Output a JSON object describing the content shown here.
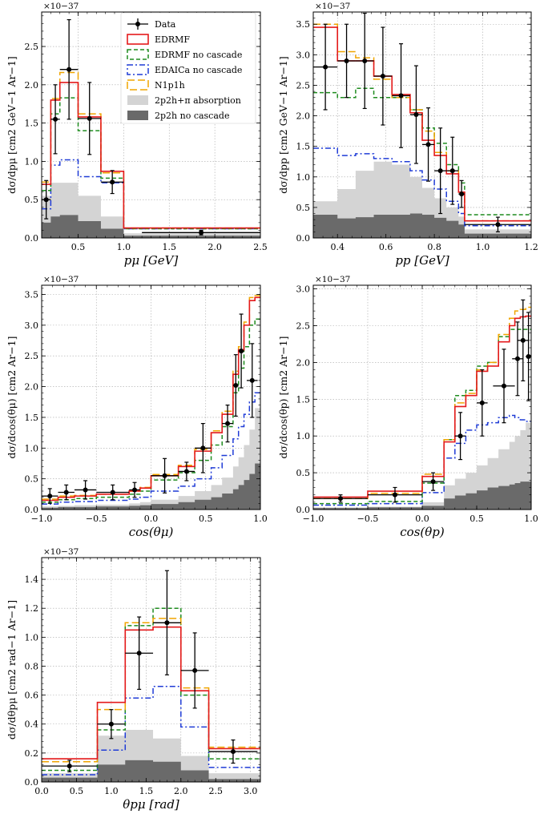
{
  "legend": {
    "title_hidden": "",
    "entries": [
      {
        "key": "data",
        "label": "Data"
      },
      {
        "key": "edrmf",
        "label": "EDRMF"
      },
      {
        "key": "edrmf_nc",
        "label": "EDRMF no cascade"
      },
      {
        "key": "edaica_nc",
        "label": "EDAICa no cascade"
      },
      {
        "key": "n1p1h",
        "label": "N1p1h"
      },
      {
        "key": "abs",
        "label": "2p2h+π absorption"
      },
      {
        "key": "nocasc",
        "label": "2p2h no cascade"
      }
    ]
  },
  "colors": {
    "edrmf": "#e41a1c",
    "edrmf_nc": "#1f8c1f",
    "edaica_nc": "#1f3bd6",
    "n1p1h": "#f0a500",
    "abs": "#d4d4d4",
    "nocasc": "#6a6a6a",
    "data": "#000000"
  },
  "chart_data": [
    {
      "id": "pmu",
      "type": "histogram",
      "scale_label": "×10−37",
      "xlabel": "pμ [GeV]",
      "ylabel": "dσ/dpμ [cm2 GeV−1 Ar−1]",
      "xlim": [
        0.1,
        2.5
      ],
      "ylim": [
        0,
        2.95
      ],
      "xticks": [
        0.5,
        1.0,
        1.5,
        2.0,
        2.5
      ],
      "xtick_labels": [
        "0.5",
        "1.0",
        "1.5",
        "2.0",
        "2.5"
      ],
      "yticks": [
        0.0,
        0.5,
        1.0,
        1.5,
        2.0,
        2.5
      ],
      "ytick_labels": [
        "0.0",
        "0.5",
        "1.0",
        "1.5",
        "2.0",
        "2.5"
      ],
      "edges": [
        0.1,
        0.2,
        0.3,
        0.5,
        0.75,
        1.0,
        1.2,
        2.5
      ],
      "series": {
        "edrmf": [
          0.7,
          1.8,
          2.03,
          1.58,
          0.87,
          0.13,
          0.13
        ],
        "edrmf_nc": [
          0.62,
          1.62,
          1.83,
          1.4,
          0.78,
          0.12,
          0.12
        ],
        "edaica_nc": [
          0.38,
          0.95,
          1.02,
          0.8,
          0.72,
          0.12,
          0.12
        ],
        "n1p1h": [
          0.73,
          1.82,
          2.16,
          1.62,
          0.85,
          0.13,
          0.13
        ],
        "abs": [
          0.55,
          0.72,
          0.72,
          0.55,
          0.28,
          0.06,
          0.06
        ],
        "nocasc": [
          0.2,
          0.28,
          0.3,
          0.22,
          0.12,
          0.03,
          0.03
        ]
      },
      "data": {
        "x": [
          0.15,
          0.25,
          0.4,
          0.625,
          0.875,
          1.85
        ],
        "xerr": [
          0.05,
          0.05,
          0.1,
          0.125,
          0.125,
          0.65
        ],
        "y": [
          0.5,
          1.55,
          2.2,
          1.56,
          0.73,
          0.07
        ],
        "yerr": [
          0.25,
          0.45,
          0.65,
          0.47,
          0.15,
          0.03
        ]
      }
    },
    {
      "id": "pp",
      "type": "histogram",
      "scale_label": "×10−37",
      "xlabel": "pp [GeV]",
      "ylabel": "dσ/dpp [cm2 GeV−1 Ar−1]",
      "xlim": [
        0.3,
        1.2
      ],
      "ylim": [
        0,
        3.7
      ],
      "xticks": [
        0.4,
        0.6,
        0.8,
        1.0,
        1.2
      ],
      "xtick_labels": [
        "0.4",
        "0.6",
        "0.8",
        "1.0",
        "1.2"
      ],
      "yticks": [
        0.0,
        0.5,
        1.0,
        1.5,
        2.0,
        2.5,
        3.0,
        3.5
      ],
      "ytick_labels": [
        "0.0",
        "0.5",
        "1.0",
        "1.5",
        "2.0",
        "2.5",
        "3.0",
        "3.5"
      ],
      "edges": [
        0.3,
        0.4,
        0.475,
        0.55,
        0.625,
        0.7,
        0.75,
        0.8,
        0.85,
        0.9,
        0.925,
        1.2
      ],
      "series": {
        "edrmf": [
          3.45,
          2.9,
          2.9,
          2.65,
          2.35,
          2.05,
          1.6,
          1.35,
          1.05,
          0.75,
          0.28
        ],
        "edrmf_nc": [
          2.38,
          2.3,
          2.45,
          2.3,
          2.3,
          2.1,
          1.8,
          1.55,
          1.2,
          0.9,
          0.38
        ],
        "edaica_nc": [
          1.47,
          1.35,
          1.38,
          1.3,
          1.25,
          1.1,
          0.95,
          0.8,
          0.6,
          0.4,
          0.2
        ],
        "n1p1h": [
          3.5,
          3.05,
          2.95,
          2.6,
          2.3,
          2.1,
          1.75,
          1.4,
          1.1,
          0.75,
          0.28
        ],
        "abs": [
          0.6,
          0.8,
          1.1,
          1.25,
          1.2,
          1.0,
          0.82,
          0.65,
          0.5,
          0.35,
          0.14
        ],
        "nocasc": [
          0.38,
          0.32,
          0.34,
          0.38,
          0.38,
          0.4,
          0.38,
          0.33,
          0.28,
          0.22,
          0.07
        ]
      },
      "data": {
        "x": [
          0.35,
          0.4375,
          0.5125,
          0.5875,
          0.6625,
          0.725,
          0.775,
          0.825,
          0.875,
          0.9125,
          1.0625
        ],
        "xerr": [
          0.05,
          0.0375,
          0.0375,
          0.0375,
          0.0375,
          0.025,
          0.025,
          0.025,
          0.025,
          0.0125,
          0.1375
        ],
        "y": [
          2.8,
          2.9,
          2.9,
          2.65,
          2.33,
          2.02,
          1.53,
          1.1,
          1.1,
          0.72,
          0.22
        ],
        "yerr": [
          0.7,
          0.6,
          0.78,
          0.8,
          0.85,
          0.8,
          0.6,
          0.7,
          0.55,
          0.22,
          0.12
        ]
      }
    },
    {
      "id": "cosmu",
      "type": "histogram",
      "scale_label": "×10−37",
      "xlabel": "cos(θμ)",
      "ylabel": "dσ/dcos(θμ) [cm2 Ar−1]",
      "xlim": [
        -1.0,
        1.0
      ],
      "ylim": [
        0,
        3.65
      ],
      "xticks": [
        -1.0,
        -0.5,
        0.0,
        0.5,
        1.0
      ],
      "xtick_labels": [
        "−1.0",
        "−0.5",
        "0.0",
        "0.5",
        "1.0"
      ],
      "yticks": [
        0.0,
        0.5,
        1.0,
        1.5,
        2.0,
        2.5,
        3.0,
        3.5
      ],
      "ytick_labels": [
        "0.0",
        "0.5",
        "1.0",
        "1.5",
        "2.0",
        "2.5",
        "3.0",
        "3.5"
      ],
      "edges": [
        -1.0,
        -0.85,
        -0.7,
        -0.5,
        -0.2,
        -0.1,
        0.0,
        0.25,
        0.4,
        0.55,
        0.65,
        0.75,
        0.8,
        0.85,
        0.9,
        0.95,
        1.0
      ],
      "series": {
        "edrmf": [
          0.15,
          0.2,
          0.22,
          0.25,
          0.3,
          0.35,
          0.55,
          0.7,
          0.95,
          1.25,
          1.55,
          2.2,
          2.6,
          3.0,
          3.4,
          3.45
        ],
        "edrmf_nc": [
          0.12,
          0.16,
          0.18,
          0.2,
          0.25,
          0.3,
          0.48,
          0.6,
          0.8,
          1.05,
          1.35,
          1.9,
          2.3,
          2.65,
          3.0,
          3.1
        ],
        "edaica_nc": [
          0.09,
          0.12,
          0.13,
          0.15,
          0.17,
          0.2,
          0.3,
          0.38,
          0.5,
          0.68,
          0.88,
          1.15,
          1.35,
          1.55,
          1.75,
          1.9
        ],
        "n1p1h": [
          0.17,
          0.22,
          0.23,
          0.25,
          0.3,
          0.36,
          0.57,
          0.72,
          0.98,
          1.28,
          1.6,
          2.25,
          2.65,
          3.05,
          3.45,
          3.48
        ],
        "abs": [
          0.05,
          0.06,
          0.07,
          0.08,
          0.1,
          0.12,
          0.16,
          0.22,
          0.3,
          0.4,
          0.52,
          0.7,
          0.85,
          1.05,
          1.3,
          1.65
        ],
        "nocasc": [
          0.03,
          0.04,
          0.04,
          0.05,
          0.06,
          0.07,
          0.09,
          0.12,
          0.16,
          0.2,
          0.26,
          0.33,
          0.4,
          0.48,
          0.58,
          0.75
        ]
      },
      "data": {
        "x": [
          -0.925,
          -0.775,
          -0.6,
          -0.35,
          -0.15,
          0.125,
          0.325,
          0.475,
          0.7,
          0.775,
          0.825,
          0.925
        ],
        "xerr": [
          0.075,
          0.075,
          0.1,
          0.15,
          0.05,
          0.125,
          0.075,
          0.075,
          0.05,
          0.025,
          0.025,
          0.05
        ],
        "y": [
          0.22,
          0.28,
          0.32,
          0.28,
          0.32,
          0.55,
          0.62,
          1.0,
          1.4,
          2.02,
          2.58,
          2.1
        ],
        "yerr": [
          0.12,
          0.12,
          0.15,
          0.12,
          0.12,
          0.28,
          0.15,
          0.4,
          0.3,
          0.5,
          0.6,
          0.6
        ]
      }
    },
    {
      "id": "cosp",
      "type": "histogram",
      "scale_label": "×10−37",
      "xlabel": "cos(θp)",
      "ylabel": "dσ/dcos(θp) [cm2 Ar−1]",
      "xlim": [
        -1.0,
        1.0
      ],
      "ylim": [
        0,
        3.05
      ],
      "xticks": [
        -1.0,
        -0.5,
        0.0,
        0.5,
        1.0
      ],
      "xtick_labels": [
        "−1.0",
        "−0.5",
        "0.0",
        "0.5",
        "1.0"
      ],
      "yticks": [
        0.0,
        0.5,
        1.0,
        1.5,
        2.0,
        2.5,
        3.0
      ],
      "ytick_labels": [
        "0.0",
        "0.5",
        "1.0",
        "1.5",
        "2.0",
        "2.5",
        "3.0"
      ],
      "edges": [
        -1.0,
        -0.5,
        0.0,
        0.2,
        0.3,
        0.4,
        0.5,
        0.6,
        0.7,
        0.8,
        0.85,
        0.9,
        0.95,
        1.0
      ],
      "series": {
        "edrmf": [
          0.17,
          0.25,
          0.45,
          0.92,
          1.4,
          1.55,
          1.88,
          1.95,
          2.28,
          2.5,
          2.6,
          2.62,
          2.63
        ],
        "edrmf_nc": [
          0.08,
          0.11,
          0.36,
          0.95,
          1.55,
          1.62,
          1.95,
          2.0,
          2.35,
          2.45,
          2.45,
          2.45,
          2.45
        ],
        "edaica_nc": [
          0.06,
          0.08,
          0.23,
          0.7,
          0.9,
          1.08,
          1.15,
          1.18,
          1.25,
          1.28,
          1.25,
          1.22,
          1.2
        ],
        "n1p1h": [
          0.15,
          0.22,
          0.48,
          0.95,
          1.45,
          1.58,
          1.9,
          2.0,
          2.38,
          2.6,
          2.7,
          2.72,
          2.75
        ],
        "abs": [
          0.03,
          0.04,
          0.1,
          0.33,
          0.42,
          0.5,
          0.6,
          0.7,
          0.82,
          0.92,
          1.0,
          1.08,
          1.18
        ],
        "nocasc": [
          0.02,
          0.03,
          0.05,
          0.15,
          0.19,
          0.22,
          0.26,
          0.3,
          0.32,
          0.34,
          0.36,
          0.38,
          0.38
        ]
      },
      "data": {
        "x": [
          -0.75,
          -0.25,
          0.1,
          0.35,
          0.55,
          0.75,
          0.875,
          0.925,
          0.975
        ],
        "xerr": [
          0.25,
          0.25,
          0.1,
          0.05,
          0.05,
          0.1,
          0.05,
          0.05,
          0.025
        ],
        "y": [
          0.15,
          0.2,
          0.38,
          1.0,
          1.45,
          1.68,
          2.05,
          2.3,
          2.08
        ],
        "yerr": [
          0.05,
          0.1,
          0.12,
          0.32,
          0.45,
          0.5,
          0.5,
          0.55,
          0.6
        ]
      }
    },
    {
      "id": "thetapmu",
      "type": "histogram",
      "scale_label": "×10−37",
      "xlabel": "θpμ [rad]",
      "ylabel": "dσ/dθpμ [cm2 rad−1 Ar−1]",
      "xlim": [
        0.0,
        3.14159
      ],
      "ylim": [
        0,
        1.55
      ],
      "xticks": [
        0.0,
        0.5,
        1.0,
        1.5,
        2.0,
        2.5,
        3.0
      ],
      "xtick_labels": [
        "0.0",
        "0.5",
        "1.0",
        "1.5",
        "2.0",
        "2.5",
        "3.0"
      ],
      "yticks": [
        0.0,
        0.2,
        0.4,
        0.6,
        0.8,
        1.0,
        1.2,
        1.4
      ],
      "ytick_labels": [
        "0.0",
        "0.2",
        "0.4",
        "0.6",
        "0.8",
        "1.0",
        "1.2",
        "1.4"
      ],
      "edges": [
        0.0,
        0.8,
        1.2,
        1.6,
        2.0,
        2.4,
        3.14159
      ],
      "series": {
        "edrmf": [
          0.16,
          0.55,
          1.05,
          1.07,
          0.63,
          0.23
        ],
        "edrmf_nc": [
          0.08,
          0.36,
          1.08,
          1.2,
          0.6,
          0.16
        ],
        "edaica_nc": [
          0.05,
          0.22,
          0.58,
          0.66,
          0.38,
          0.1
        ],
        "n1p1h": [
          0.14,
          0.5,
          1.1,
          1.13,
          0.65,
          0.24
        ],
        "abs": [
          0.06,
          0.32,
          0.36,
          0.3,
          0.18,
          0.06
        ],
        "nocasc": [
          0.03,
          0.12,
          0.15,
          0.14,
          0.08,
          0.02
        ]
      },
      "data": {
        "x": [
          0.4,
          1.0,
          1.4,
          1.8,
          2.2,
          2.75
        ],
        "xerr": [
          0.4,
          0.2,
          0.2,
          0.2,
          0.2,
          0.35
        ],
        "y": [
          0.11,
          0.4,
          0.89,
          1.1,
          0.77,
          0.21
        ],
        "yerr": [
          0.04,
          0.1,
          0.25,
          0.36,
          0.26,
          0.08
        ]
      }
    }
  ]
}
